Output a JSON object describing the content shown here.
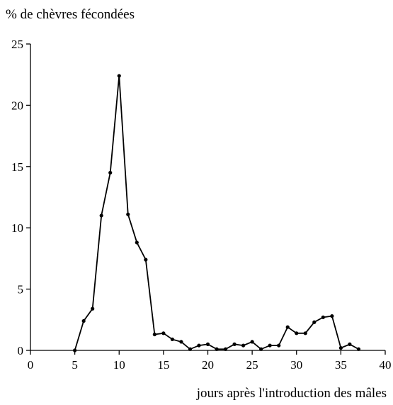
{
  "chart_data": {
    "type": "line",
    "title": "%  de chèvres fécondées",
    "x_label": "jours après l'introduction des mâles",
    "x": [
      5,
      6,
      7,
      8,
      9,
      10,
      11,
      12,
      13,
      14,
      15,
      16,
      17,
      18,
      19,
      20,
      21,
      22,
      23,
      24,
      25,
      26,
      27,
      28,
      29,
      30,
      31,
      32,
      33,
      34,
      35,
      36,
      37
    ],
    "series": [
      {
        "color": "#000000",
        "values": [
          0,
          2.4,
          3.4,
          11,
          14.5,
          22.4,
          11.1,
          8.8,
          7.4,
          1.3,
          1.4,
          0.9,
          0.7,
          0.1,
          0.4,
          0.5,
          0.1,
          0.1,
          0.5,
          0.4,
          0.7,
          0.1,
          0.4,
          0.4,
          1.9,
          1.4,
          1.4,
          2.3,
          2.7,
          2.8,
          0.2,
          0.5,
          0.1
        ]
      }
    ],
    "xlim": [
      0,
      40
    ],
    "xticks": [
      0,
      5,
      10,
      15,
      20,
      25,
      30,
      35,
      40
    ],
    "ylim": [
      0,
      25
    ],
    "yticks": [
      0,
      5,
      10,
      15,
      20,
      25
    ]
  }
}
